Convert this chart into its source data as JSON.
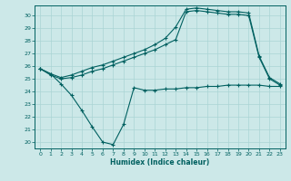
{
  "xlabel": "Humidex (Indice chaleur)",
  "bg_color": "#cce8e8",
  "line_color": "#006060",
  "grid_color": "#aad4d4",
  "xlim": [
    -0.5,
    23.5
  ],
  "ylim": [
    19.5,
    30.8
  ],
  "xticks": [
    0,
    1,
    2,
    3,
    4,
    5,
    6,
    7,
    8,
    9,
    10,
    11,
    12,
    13,
    14,
    15,
    16,
    17,
    18,
    19,
    20,
    21,
    22,
    23
  ],
  "yticks": [
    20,
    21,
    22,
    23,
    24,
    25,
    26,
    27,
    28,
    29,
    30
  ],
  "line1_x": [
    0,
    1,
    2,
    3,
    4,
    5,
    6,
    7,
    8,
    9,
    10,
    11,
    12,
    13,
    14,
    15,
    16,
    17,
    18,
    19,
    20,
    21,
    22,
    23
  ],
  "line1_y": [
    25.8,
    25.4,
    24.6,
    23.7,
    22.5,
    21.2,
    20.0,
    19.8,
    21.4,
    24.3,
    24.1,
    24.1,
    24.2,
    24.2,
    24.3,
    24.3,
    24.4,
    24.4,
    24.5,
    24.5,
    24.5,
    24.5,
    24.4,
    24.4
  ],
  "line2_x": [
    0,
    1,
    2,
    3,
    4,
    5,
    6,
    7,
    8,
    9,
    10,
    11,
    12,
    13,
    14,
    15,
    16,
    17,
    18,
    19,
    20,
    21,
    22,
    23
  ],
  "line2_y": [
    25.8,
    25.3,
    25.0,
    25.1,
    25.3,
    25.6,
    25.8,
    26.1,
    26.4,
    26.7,
    27.0,
    27.3,
    27.7,
    28.1,
    30.3,
    30.4,
    30.3,
    30.2,
    30.1,
    30.1,
    30.0,
    26.7,
    25.0,
    24.5
  ],
  "line3_x": [
    0,
    1,
    2,
    3,
    4,
    5,
    6,
    7,
    8,
    9,
    10,
    11,
    12,
    13,
    14,
    15,
    16,
    17,
    18,
    19,
    20,
    21,
    22,
    23
  ],
  "line3_y": [
    25.8,
    25.4,
    25.1,
    25.3,
    25.6,
    25.9,
    26.1,
    26.4,
    26.7,
    27.0,
    27.3,
    27.7,
    28.2,
    29.1,
    30.5,
    30.6,
    30.5,
    30.4,
    30.3,
    30.3,
    30.2,
    26.8,
    25.1,
    24.6
  ]
}
